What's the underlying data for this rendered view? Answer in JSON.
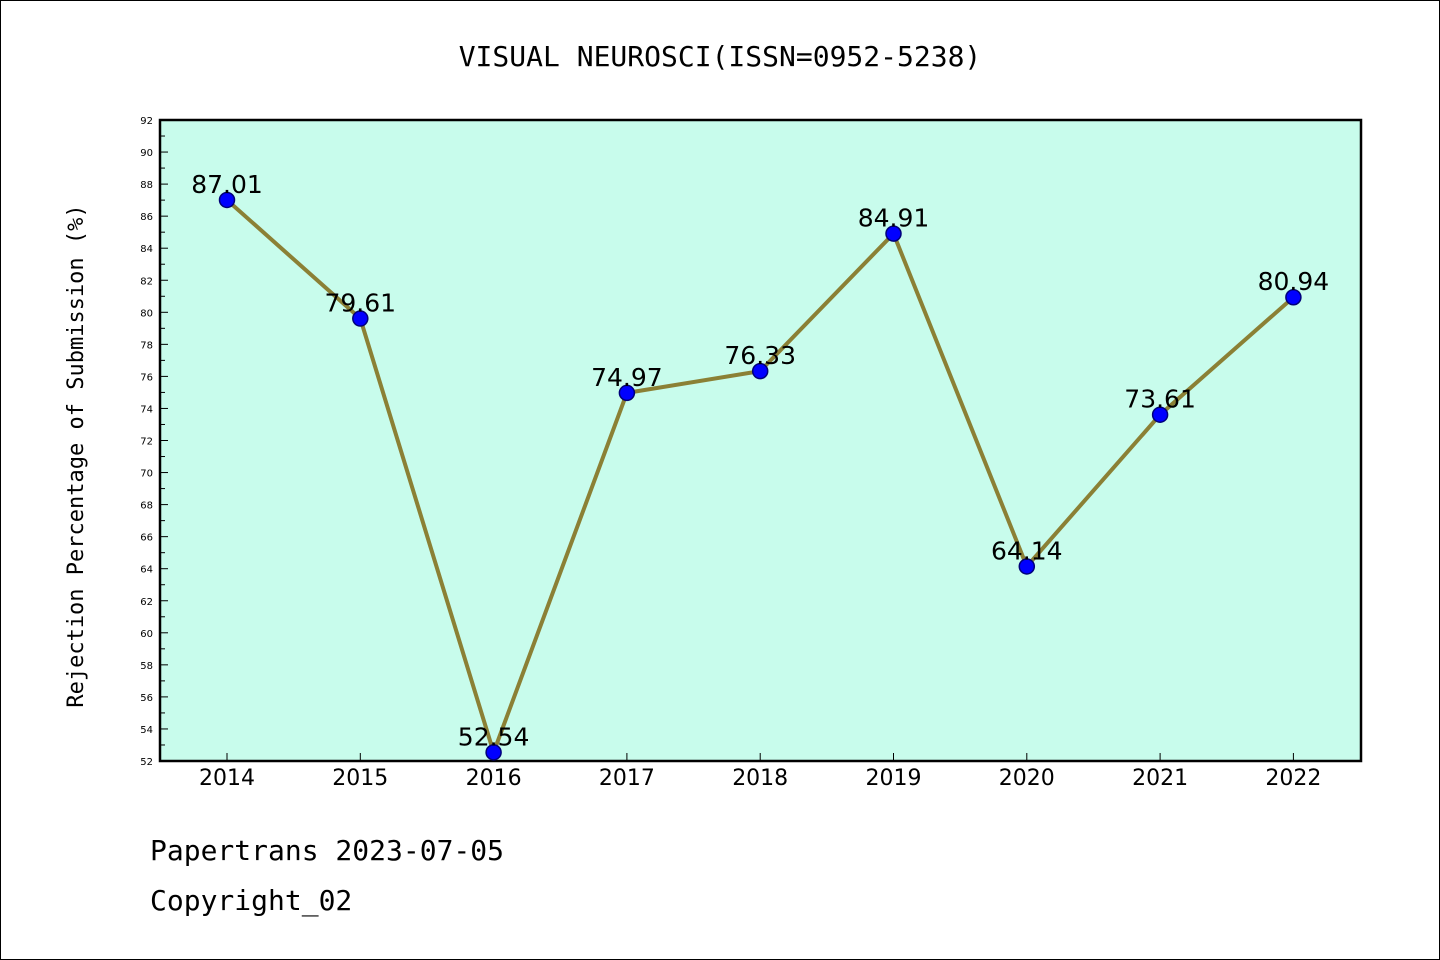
{
  "footer": {
    "line1": "Papertrans 2023-07-05",
    "line2": "Copyright_02"
  },
  "colors": {
    "plot_background": "#c8fcec",
    "line": "#8b8035",
    "marker": "#0000ff",
    "marker_edge": "#00007a"
  },
  "chart_data": {
    "type": "line",
    "title": "VISUAL NEUROSCI(ISSN=0952-5238)",
    "xlabel": "",
    "ylabel": "Rejection Percentage of Submission (%)",
    "categories": [
      "2014",
      "2015",
      "2016",
      "2017",
      "2018",
      "2019",
      "2020",
      "2021",
      "2022"
    ],
    "values": [
      87.01,
      79.61,
      52.54,
      74.97,
      76.33,
      84.91,
      64.14,
      73.61,
      80.94
    ],
    "data_labels": [
      "87.01",
      "79.61",
      "52.54",
      "74.97",
      "76.33",
      "84.91",
      "64.14",
      "73.61",
      "80.94"
    ],
    "ylim": [
      52,
      92
    ],
    "yticks": [
      52,
      54,
      56,
      58,
      60,
      62,
      64,
      66,
      68,
      70,
      72,
      74,
      76,
      78,
      80,
      82,
      84,
      86,
      88,
      90,
      92
    ],
    "grid": false,
    "legend": "none"
  }
}
